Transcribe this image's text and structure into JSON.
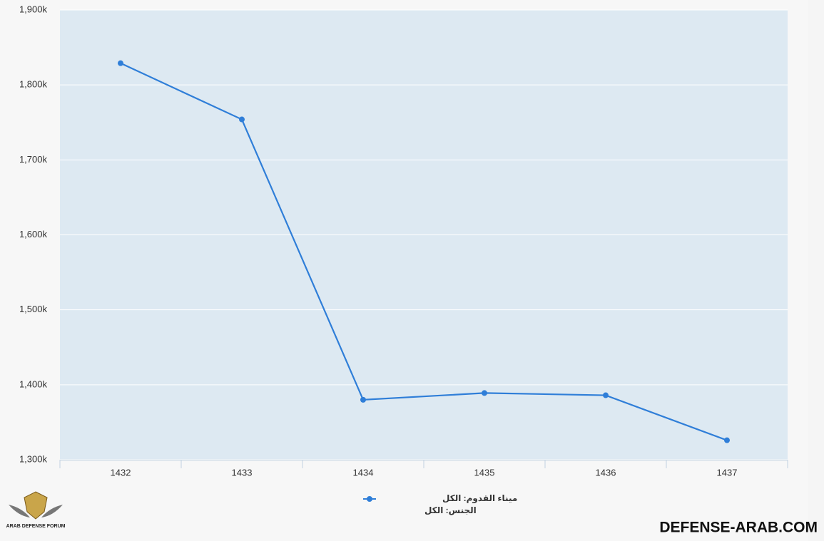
{
  "chart_data": {
    "type": "line",
    "categories": [
      "1432",
      "1433",
      "1434",
      "1435",
      "1436",
      "1437"
    ],
    "series": [
      {
        "name": "ميناء القدوم: الكل",
        "color": "#2f7ed8",
        "values": [
          1829,
          1754,
          1380,
          1389,
          1386,
          1326
        ]
      }
    ],
    "legend_note": "الجنس: الكل",
    "ylim": [
      1300,
      1900
    ],
    "yticks": [
      {
        "value": 1300,
        "label": "1,300k"
      },
      {
        "value": 1400,
        "label": "1,400k"
      },
      {
        "value": 1500,
        "label": "1,500k"
      },
      {
        "value": 1600,
        "label": "1,600k"
      },
      {
        "value": 1700,
        "label": "1,700k"
      },
      {
        "value": 1800,
        "label": "1,800k"
      },
      {
        "value": 1900,
        "label": "1,900k"
      }
    ],
    "grid": true,
    "plot_background": "#dde9f2",
    "watermark": "DEFENSE-ARAB.COM",
    "logo_text": "ARAB DEFENSE FORUM"
  }
}
